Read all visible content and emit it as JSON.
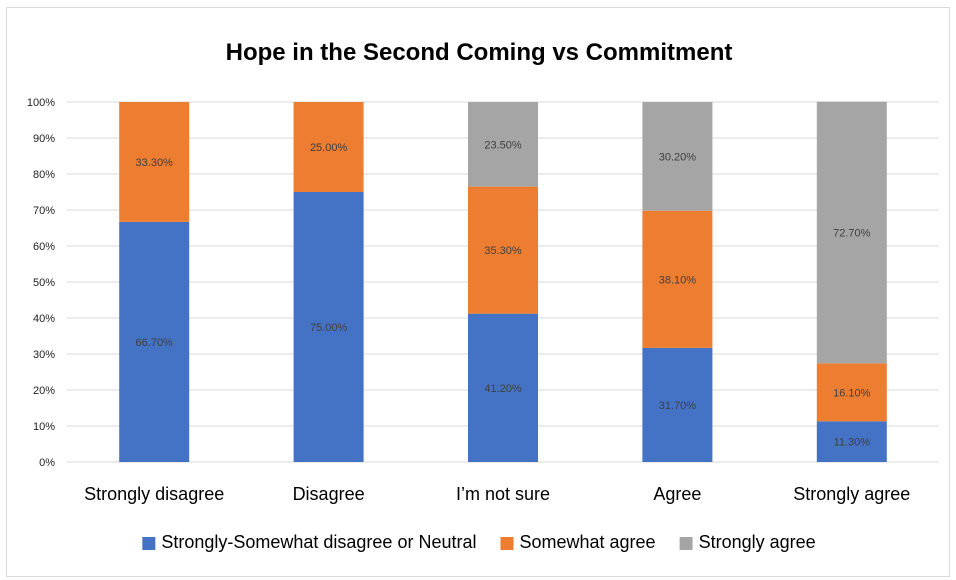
{
  "chart_data": {
    "type": "bar",
    "stacked": true,
    "percent_stacked": true,
    "title": "Hope in the Second Coming vs Commitment",
    "categories": [
      "Strongly disagree",
      "Disagree",
      "I’m not sure",
      "Agree",
      "Strongly agree"
    ],
    "series": [
      {
        "name": "Strongly-Somewhat disagree or Neutral",
        "color": "#4472c4",
        "values": [
          66.7,
          75.0,
          41.2,
          31.7,
          11.3
        ],
        "labels": [
          "66.70%",
          "75.00%",
          "41.20%",
          "31.70%",
          "11.30%"
        ]
      },
      {
        "name": "Somewhat agree",
        "color": "#ed7d31",
        "values": [
          33.3,
          25.0,
          35.3,
          38.1,
          16.1
        ],
        "labels": [
          "33.30%",
          "25.00%",
          "35.30%",
          "38.10%",
          "16.10%"
        ]
      },
      {
        "name": "Strongly agree",
        "color": "#a5a5a5",
        "values": [
          0,
          0,
          23.5,
          30.2,
          72.7
        ],
        "labels": [
          "",
          "",
          "23.50%",
          "30.20%",
          "72.70%"
        ]
      }
    ],
    "ylim": [
      0,
      100
    ],
    "yticks": [
      "0%",
      "10%",
      "20%",
      "30%",
      "40%",
      "50%",
      "60%",
      "70%",
      "80%",
      "90%",
      "100%"
    ],
    "grid": true,
    "legend": "bottom"
  }
}
